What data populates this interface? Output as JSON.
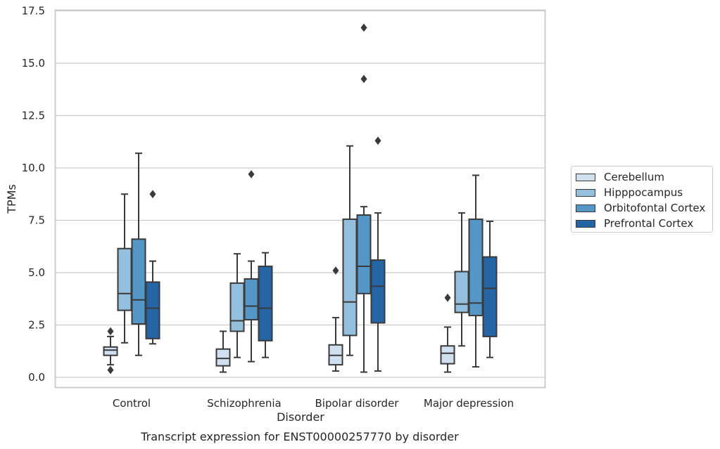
{
  "chart_data": {
    "type": "box",
    "xlabel": "Disorder",
    "ylabel": "TPMs",
    "caption": "Transcript expression for ENST00000257770 by disorder",
    "ylim": [
      -0.5,
      17.5
    ],
    "yticks": [
      "0.0",
      "2.5",
      "5.0",
      "7.5",
      "10.0",
      "12.5",
      "15.0",
      "17.5"
    ],
    "ytick_values": [
      0,
      2.5,
      5,
      7.5,
      10,
      12.5,
      15,
      17.5
    ],
    "grid": "horizontal",
    "legend_position": "right",
    "categories": [
      "Control",
      "Schizophrenia",
      "Bipolar disorder",
      "Major depression"
    ],
    "series": [
      {
        "name": "Cerebellum",
        "color": "#d1e0ef",
        "boxes": [
          {
            "whislo": 0.6,
            "q1": 1.05,
            "med": 1.3,
            "q3": 1.45,
            "whishi": 1.95,
            "fliers": [
              0.35,
              2.2
            ]
          },
          {
            "whislo": 0.25,
            "q1": 0.55,
            "med": 0.9,
            "q3": 1.35,
            "whishi": 2.2,
            "fliers": []
          },
          {
            "whislo": 0.3,
            "q1": 0.6,
            "med": 1.05,
            "q3": 1.55,
            "whishi": 2.85,
            "fliers": [
              5.1
            ]
          },
          {
            "whislo": 0.25,
            "q1": 0.65,
            "med": 1.15,
            "q3": 1.5,
            "whishi": 2.4,
            "fliers": [
              3.8
            ]
          }
        ]
      },
      {
        "name": "Hipppocampus",
        "color": "#94c0dd",
        "boxes": [
          {
            "whislo": 1.65,
            "q1": 3.2,
            "med": 4.0,
            "q3": 6.15,
            "whishi": 8.75,
            "fliers": []
          },
          {
            "whislo": 0.95,
            "q1": 2.2,
            "med": 2.7,
            "q3": 4.5,
            "whishi": 5.9,
            "fliers": []
          },
          {
            "whislo": 1.05,
            "q1": 2.0,
            "med": 3.6,
            "q3": 7.55,
            "whishi": 11.05,
            "fliers": []
          },
          {
            "whislo": 1.5,
            "q1": 3.1,
            "med": 3.5,
            "q3": 5.05,
            "whishi": 7.85,
            "fliers": []
          }
        ]
      },
      {
        "name": "Orbitofontal Cortex",
        "color": "#5496c6",
        "boxes": [
          {
            "whislo": 1.05,
            "q1": 2.55,
            "med": 3.7,
            "q3": 6.6,
            "whishi": 10.7,
            "fliers": []
          },
          {
            "whislo": 0.75,
            "q1": 2.75,
            "med": 3.4,
            "q3": 4.7,
            "whishi": 5.55,
            "fliers": [
              9.7
            ]
          },
          {
            "whislo": 0.25,
            "q1": 4.0,
            "med": 5.3,
            "q3": 7.75,
            "whishi": 8.15,
            "fliers": [
              14.25,
              16.7
            ]
          },
          {
            "whislo": 0.5,
            "q1": 2.95,
            "med": 3.55,
            "q3": 7.55,
            "whishi": 9.65,
            "fliers": []
          }
        ]
      },
      {
        "name": "Prefrontal Cortex",
        "color": "#2465a6",
        "boxes": [
          {
            "whislo": 1.6,
            "q1": 1.85,
            "med": 3.3,
            "q3": 4.55,
            "whishi": 5.55,
            "fliers": [
              8.75
            ]
          },
          {
            "whislo": 0.95,
            "q1": 1.75,
            "med": 3.3,
            "q3": 5.3,
            "whishi": 5.95,
            "fliers": []
          },
          {
            "whislo": 0.3,
            "q1": 2.6,
            "med": 4.35,
            "q3": 5.6,
            "whishi": 7.85,
            "fliers": [
              11.3
            ]
          },
          {
            "whislo": 0.95,
            "q1": 1.95,
            "med": 4.25,
            "q3": 5.75,
            "whishi": 7.45,
            "fliers": []
          }
        ]
      }
    ]
  }
}
